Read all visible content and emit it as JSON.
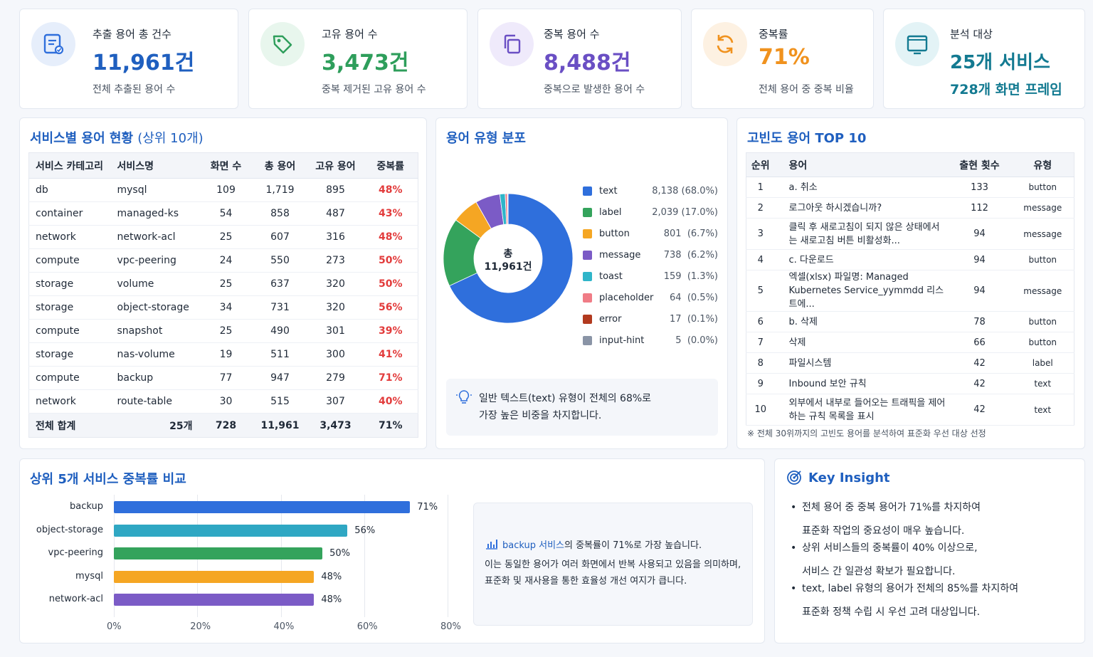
{
  "kpis": [
    {
      "label": "추출 용어 총 건수",
      "value": "11,961건",
      "sub": "전체 추출된 용어 수",
      "color": "#1f5fbf",
      "icon": "document-check-icon"
    },
    {
      "label": "고유 용어 수",
      "value": "3,473건",
      "sub": "중복 제거된 고유 용어 수",
      "color": "#2e9e5b",
      "icon": "tag-icon"
    },
    {
      "label": "중복 용어 수",
      "value": "8,488건",
      "sub": "중복으로 발생한 용어 수",
      "color": "#6a4fc4",
      "icon": "copy-icon"
    },
    {
      "label": "중복률",
      "value": "71%",
      "sub": "전체 용어 중 중복 비율",
      "color": "#f0921e",
      "icon": "refresh-icon"
    },
    {
      "label": "분석 대상",
      "value": "25개 서비스",
      "sub": "728개 화면 프레임",
      "color": "#137a91",
      "icon": "monitor-icon"
    }
  ],
  "service_section": {
    "title": "서비스별 용어 현황",
    "title_suffix": "(상위 10개)",
    "columns": [
      "서비스 카테고리",
      "서비스명",
      "화면 수",
      "총 용어",
      "고유 용어",
      "중복률"
    ],
    "rows": [
      [
        "db",
        "mysql",
        "109",
        "1,719",
        "895",
        "48%"
      ],
      [
        "container",
        "managed-ks",
        "54",
        "858",
        "487",
        "43%"
      ],
      [
        "network",
        "network-acl",
        "25",
        "607",
        "316",
        "48%"
      ],
      [
        "compute",
        "vpc-peering",
        "24",
        "550",
        "273",
        "50%"
      ],
      [
        "storage",
        "volume",
        "25",
        "637",
        "320",
        "50%"
      ],
      [
        "storage",
        "object-storage",
        "34",
        "731",
        "320",
        "56%"
      ],
      [
        "compute",
        "snapshot",
        "25",
        "490",
        "301",
        "39%"
      ],
      [
        "storage",
        "nas-volume",
        "19",
        "511",
        "300",
        "41%"
      ],
      [
        "compute",
        "backup",
        "77",
        "947",
        "279",
        "71%"
      ],
      [
        "network",
        "route-table",
        "30",
        "515",
        "307",
        "40%"
      ]
    ],
    "total": [
      "전체 합계",
      "25개",
      "728",
      "11,961",
      "3,473",
      "71%"
    ]
  },
  "type_section": {
    "title": "용어 유형 분포",
    "center_label": "총",
    "center_value": "11,961건",
    "legend": [
      {
        "name": "text",
        "value": "8,138 (68.0%)",
        "color": "#2f6fdc"
      },
      {
        "name": "label",
        "value": "2,039 (17.0%)",
        "color": "#34a35c"
      },
      {
        "name": "button",
        "value": "801  (6.7%)",
        "color": "#f5a623"
      },
      {
        "name": "message",
        "value": "738  (6.2%)",
        "color": "#7b5bc6"
      },
      {
        "name": "toast",
        "value": "159  (1.3%)",
        "color": "#2fb5c9"
      },
      {
        "name": "placeholder",
        "value": "64  (0.5%)",
        "color": "#f07c86"
      },
      {
        "name": "error",
        "value": "17  (0.1%)",
        "color": "#b23a1f"
      },
      {
        "name": "input-hint",
        "value": "5  (0.0%)",
        "color": "#8a94a6"
      }
    ],
    "note_line1": "일반 텍스트(text) 유형이 전체의 68%로",
    "note_line2": "가장 높은 비중을 차지합니다."
  },
  "top_section": {
    "title": "고빈도 용어 TOP 10",
    "columns": [
      "순위",
      "용어",
      "출현 횟수",
      "유형"
    ],
    "rows": [
      {
        "rank": "1",
        "term": "a. 취소",
        "count": "133",
        "type": "button"
      },
      {
        "rank": "2",
        "term": "로그아웃 하시겠습니까?",
        "count": "112",
        "type": "message"
      },
      {
        "rank": "3",
        "term": "클릭 후 새로고침이 되지 않은 상태에서는 새로고침 버튼 비활성화...",
        "count": "94",
        "type": "message"
      },
      {
        "rank": "4",
        "term": "c. 다운로드",
        "count": "94",
        "type": "button"
      },
      {
        "rank": "5",
        "term": "엑셀(xlsx) 파일명: Managed Kubernetes Service_yymmdd 리스트에...",
        "count": "94",
        "type": "message"
      },
      {
        "rank": "6",
        "term": "b. 삭제",
        "count": "78",
        "type": "button"
      },
      {
        "rank": "7",
        "term": "삭제",
        "count": "66",
        "type": "button"
      },
      {
        "rank": "8",
        "term": "파일시스템",
        "count": "42",
        "type": "label"
      },
      {
        "rank": "9",
        "term": "Inbound 보안 규칙",
        "count": "42",
        "type": "text"
      },
      {
        "rank": "10",
        "term": "외부에서 내부로 들어오는 트래픽을 제어하는 규칙 목록을 표시",
        "count": "42",
        "type": "text"
      }
    ],
    "footnote": "※ 전체 30위까지의 고빈도 용어를 분석하여 표준화 우선 대상 선정"
  },
  "compare_section": {
    "title": "상위 5개 서비스 중복률 비교",
    "note_highlight": "backup 서비스",
    "note_rest": "의 중복률이 71%로 가장 높습니다.",
    "note_line2": "이는 동일한 용어가 여러 화면에서 반복 사용되고 있음을 의미하며,",
    "note_line3": "표준화 및 재사용을 통한 효율성 개선 여지가 큽니다."
  },
  "chart_data": {
    "type": "bar",
    "orientation": "horizontal",
    "categories": [
      "backup",
      "object-storage",
      "vpc-peering",
      "mysql",
      "network-acl"
    ],
    "values": [
      71,
      56,
      50,
      48,
      48
    ],
    "value_labels": [
      "71%",
      "56%",
      "50%",
      "48%",
      "48%"
    ],
    "colors": [
      "#2f6fdc",
      "#2fa7c3",
      "#34a35c",
      "#f5a623",
      "#7b5bc6"
    ],
    "xlim": [
      0,
      80
    ],
    "ticks": [
      "0%",
      "20%",
      "40%",
      "60%",
      "80%"
    ],
    "grid": true
  },
  "insight_section": {
    "title": "Key Insight",
    "items": [
      {
        "line1": "전체 용어 중 중복 용어가 71%를 차지하여",
        "line2": "표준화 작업의 중요성이 매우 높습니다."
      },
      {
        "line1": "상위 서비스들의 중복률이 40% 이상으로,",
        "line2": "서비스 간 일관성 확보가 필요합니다."
      },
      {
        "line1": "text, label 유형의 용어가 전체의 85%를 차지하여",
        "line2": "표준화 정책 수립 시 우선 고려 대상입니다."
      }
    ]
  }
}
